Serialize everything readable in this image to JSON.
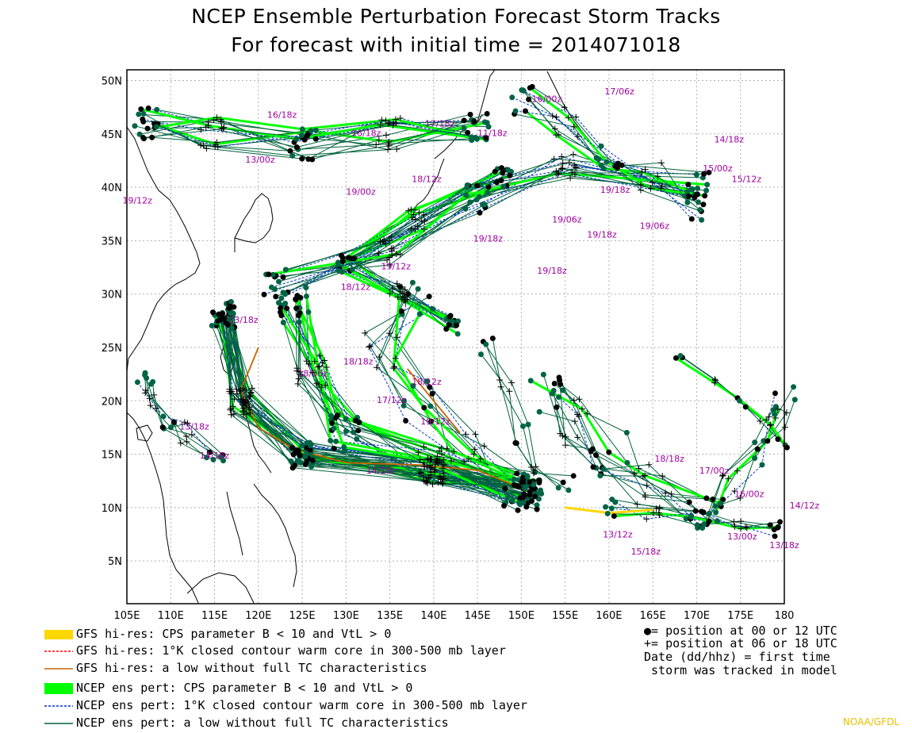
{
  "title": {
    "line1": "NCEP Ensemble Perturbation Forecast Storm Tracks",
    "line2": "For forecast with initial time = 2014071018"
  },
  "axes": {
    "lat_labels": [
      "50N",
      "45N",
      "40N",
      "35N",
      "30N",
      "25N",
      "20N",
      "15N",
      "10N",
      "5N"
    ],
    "lat_values": [
      50,
      45,
      40,
      35,
      30,
      25,
      20,
      15,
      10,
      5
    ],
    "lon_labels": [
      "105E",
      "110E",
      "115E",
      "120E",
      "125E",
      "130E",
      "135E",
      "140E",
      "145E",
      "150E",
      "155E",
      "160E",
      "165E",
      "170E",
      "175E",
      "180"
    ],
    "lon_values": [
      105,
      110,
      115,
      120,
      125,
      130,
      135,
      140,
      145,
      150,
      155,
      160,
      165,
      170,
      175,
      180
    ],
    "lon_range": [
      105,
      180
    ],
    "lat_range": [
      1,
      51
    ]
  },
  "colors": {
    "gfs_cps": "#ffd700",
    "gfs_warm": "#ff0000",
    "gfs_low": "#c86400",
    "ens_cps": "#00ff00",
    "ens_warm": "#0032c8",
    "ens_low": "#00643c",
    "marker": "#000000",
    "ens_marker": "#006446",
    "date_label": "#a000a0",
    "grid": "#b0b0b0",
    "credit": "#e8c000"
  },
  "legend": {
    "gfs_cps": "GFS hi-res: CPS parameter B < 10 and VtL > 0",
    "gfs_warm": "GFS hi-res: 1°K closed contour warm core in 300-500 mb layer",
    "gfs_low": "GFS hi-res: a low without full TC characteristics",
    "ens_cps": "NCEP ens pert: CPS parameter B < 10 and VtL > 0",
    "ens_warm": "NCEP ens pert: 1°K closed contour warm core in 300-500 mb layer",
    "ens_low": "NCEP ens pert: a low without full TC characteristics",
    "key1": "●= position at 00 or 12 UTC",
    "key2": "+= position at 06 or 18 UTC",
    "key3": "Date (dd/hhz)  = first time",
    "key4": " storm was tracked in model"
  },
  "credit": "NOAA/GFDL",
  "track_labels": [
    {
      "text": "19/12z",
      "lon": 104.5,
      "lat": 38.5
    },
    {
      "text": "19/00z",
      "lon": 130,
      "lat": 39.3
    },
    {
      "text": "18/12z",
      "lon": 137.5,
      "lat": 40.5
    },
    {
      "text": "17/18z",
      "lon": 139,
      "lat": 45.7
    },
    {
      "text": "16/18z",
      "lon": 121,
      "lat": 46.5
    },
    {
      "text": "11/18z",
      "lon": 145,
      "lat": 44.8
    },
    {
      "text": "16/00z",
      "lon": 151.2,
      "lat": 48
    },
    {
      "text": "17/06z",
      "lon": 159.5,
      "lat": 48.7
    },
    {
      "text": "19/18z",
      "lon": 159,
      "lat": 39.5
    },
    {
      "text": "19/06z",
      "lon": 153.5,
      "lat": 36.7
    },
    {
      "text": "19/18z",
      "lon": 144.5,
      "lat": 34.9
    },
    {
      "text": "19/06z",
      "lon": 163.5,
      "lat": 36.1
    },
    {
      "text": "19/18z",
      "lon": 157.5,
      "lat": 35.3
    },
    {
      "text": "19/12z",
      "lon": 134,
      "lat": 32.3
    },
    {
      "text": "19/18z",
      "lon": 151.8,
      "lat": 31.9
    },
    {
      "text": "18/12z",
      "lon": 129.4,
      "lat": 30.4
    },
    {
      "text": "15/00z",
      "lon": 170.7,
      "lat": 41.5
    },
    {
      "text": "15/12z",
      "lon": 174,
      "lat": 40.5
    },
    {
      "text": "14/18z",
      "lon": 172,
      "lat": 44.2
    },
    {
      "text": "16/18z",
      "lon": 130.6,
      "lat": 44.8
    },
    {
      "text": "13/00z",
      "lon": 118.5,
      "lat": 42.3
    },
    {
      "text": "13/18z",
      "lon": 116.6,
      "lat": 27.3
    },
    {
      "text": "18/18z",
      "lon": 129.7,
      "lat": 23.4
    },
    {
      "text": "18/06z",
      "lon": 124.5,
      "lat": 22.3
    },
    {
      "text": "17/12z",
      "lon": 133.5,
      "lat": 19.8
    },
    {
      "text": "18/12z",
      "lon": 137.5,
      "lat": 21.5
    },
    {
      "text": "19/12z",
      "lon": 138.5,
      "lat": 17.8
    },
    {
      "text": "13/18z",
      "lon": 111,
      "lat": 17.3
    },
    {
      "text": "14/18z",
      "lon": 113.3,
      "lat": 14.6
    },
    {
      "text": "14/18z",
      "lon": 132.3,
      "lat": 13.2
    },
    {
      "text": "18/18z",
      "lon": 165.2,
      "lat": 14.3
    },
    {
      "text": "17/00z",
      "lon": 170.3,
      "lat": 13.2
    },
    {
      "text": "16/00z",
      "lon": 174.3,
      "lat": 11
    },
    {
      "text": "14/12z",
      "lon": 180.6,
      "lat": 9.9
    },
    {
      "text": "13/12z",
      "lon": 159.3,
      "lat": 7.2
    },
    {
      "text": "15/18z",
      "lon": 162.5,
      "lat": 5.6
    },
    {
      "text": "13/18z",
      "lon": 178.3,
      "lat": 6.2
    },
    {
      "text": "13/00z",
      "lon": 173.5,
      "lat": 7
    }
  ]
}
